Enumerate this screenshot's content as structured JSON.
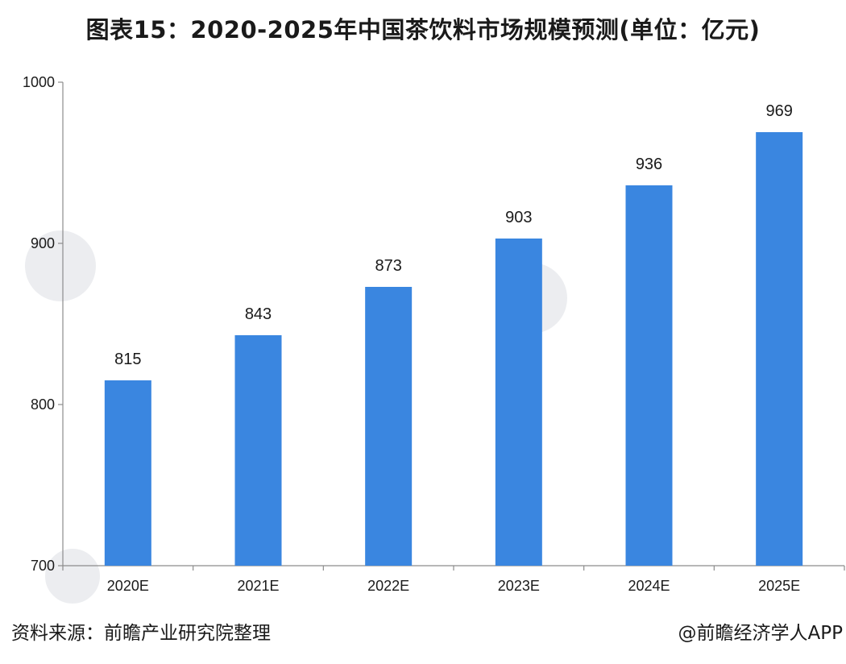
{
  "chart_data": {
    "type": "bar",
    "title": "图表15：2020-2025年中国茶饮料市场规模预测(单位：亿元)",
    "categories": [
      "2020E",
      "2021E",
      "2022E",
      "2023E",
      "2024E",
      "2025E"
    ],
    "values": [
      815,
      843,
      873,
      903,
      936,
      969
    ],
    "data_labels": [
      "815",
      "843",
      "873",
      "903",
      "936",
      "969"
    ],
    "ylim": [
      700,
      1000
    ],
    "yticks": [
      700,
      800,
      900,
      1000
    ],
    "ytick_labels": [
      "700",
      "800",
      "900",
      "1000"
    ],
    "xlabel": "",
    "ylabel": "",
    "grid": false,
    "bar_color": "#3a86e0"
  },
  "footer": {
    "source": "资料来源：前瞻产业研究院整理",
    "credit": "@前瞻经济学人APP"
  }
}
